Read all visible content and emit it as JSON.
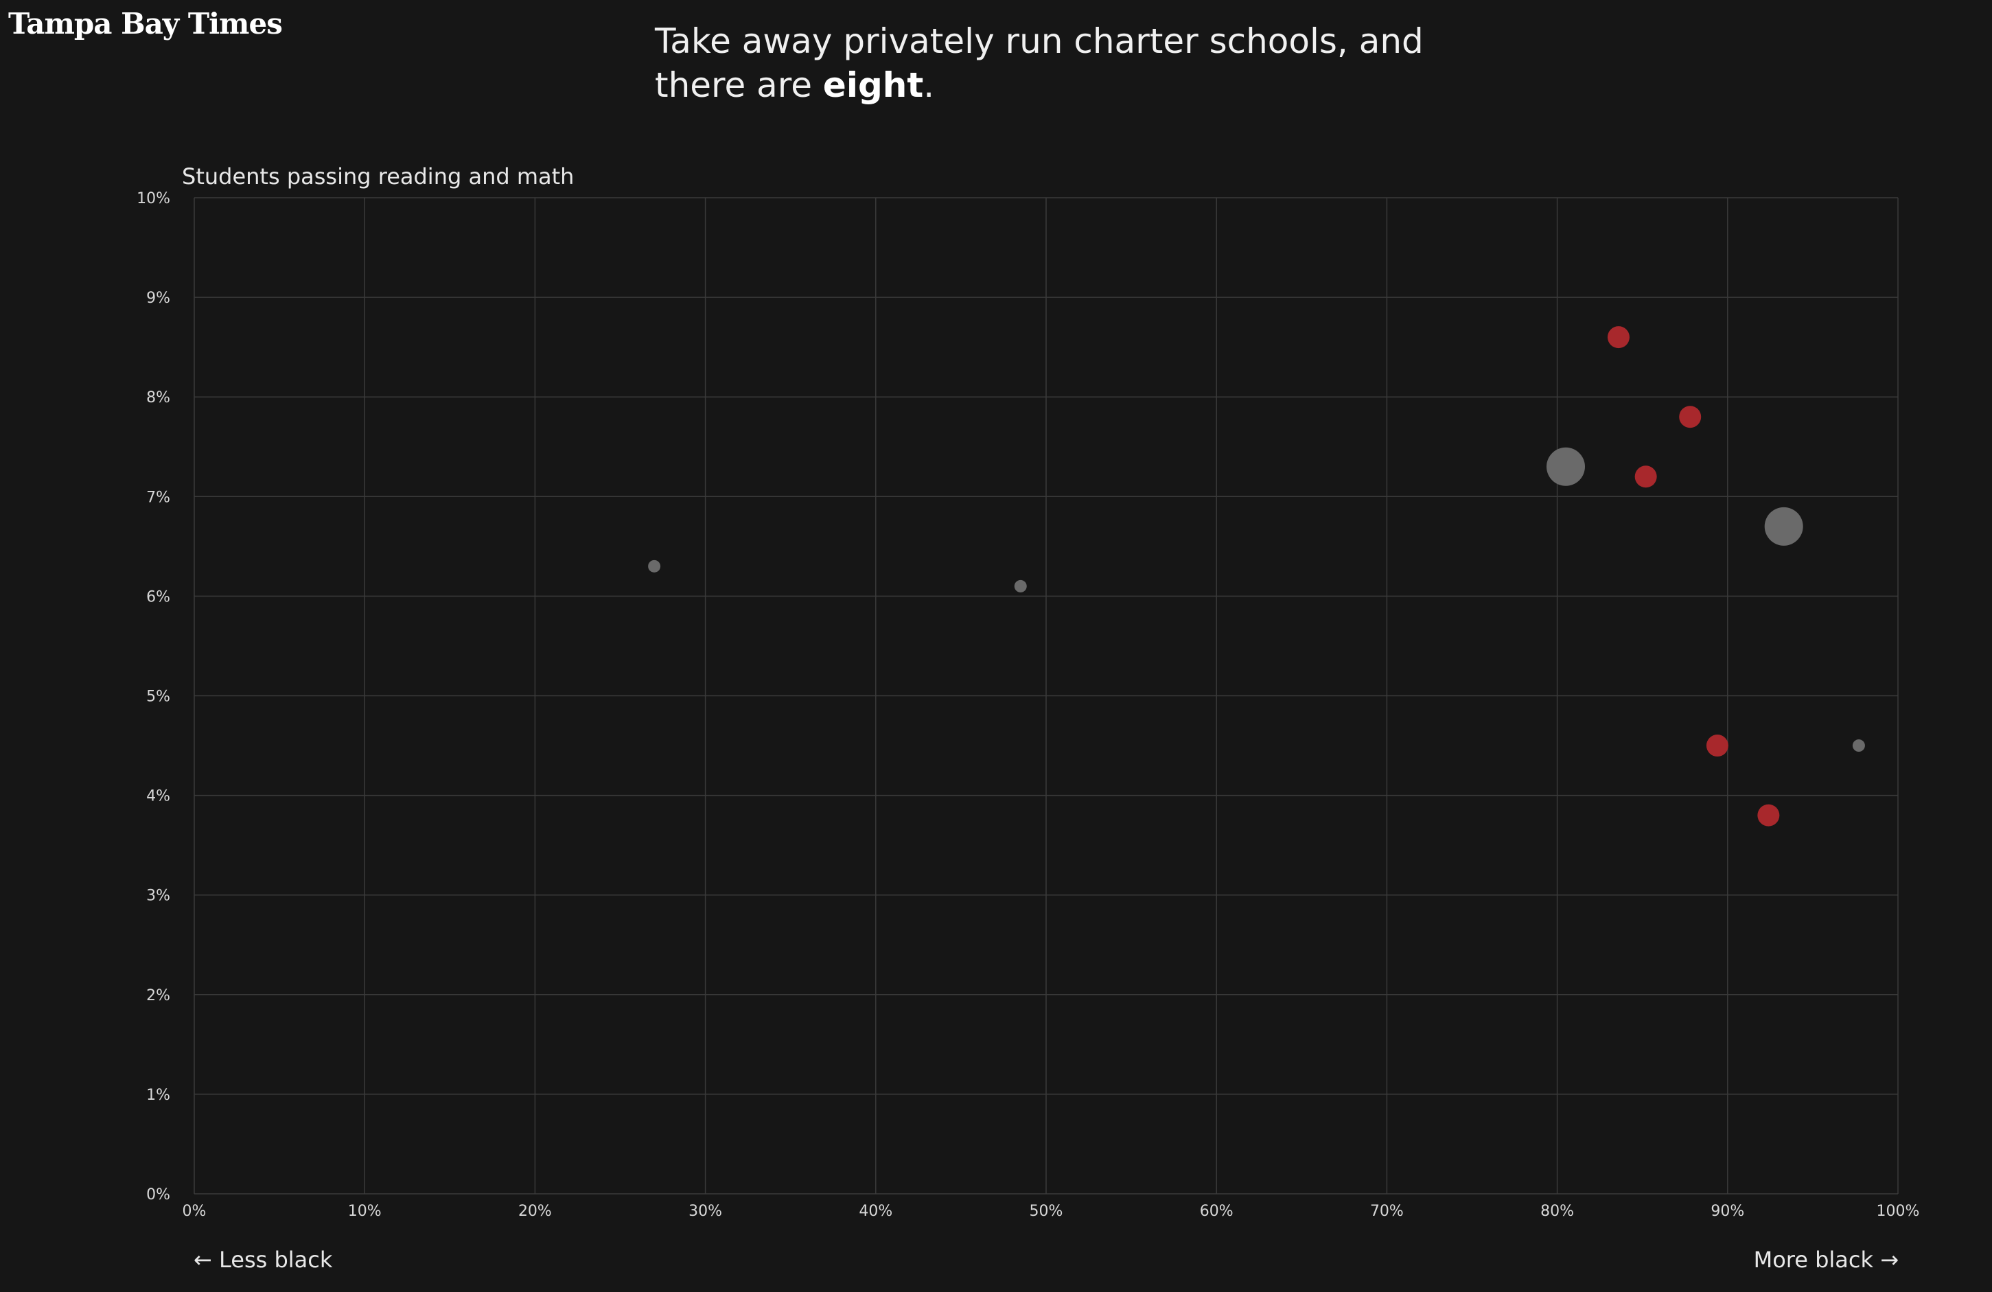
{
  "brand": {
    "logo_text": "Tampa Bay Times"
  },
  "headline": {
    "before": "Take away privately run charter schools, and there are ",
    "emphasis": "eight",
    "after": "."
  },
  "footer": {
    "left_label": "← Less black",
    "right_label": "More black →"
  },
  "colors": {
    "background": "#161616",
    "grid": "#3a3a3a",
    "highlight": "#a8282c",
    "other": "#6a6a6a"
  },
  "chart_data": {
    "type": "scatter",
    "title": "",
    "xlabel": "",
    "ylabel": "Students passing reading and math",
    "xlim": [
      0,
      100
    ],
    "ylim": [
      0,
      10
    ],
    "x_ticks": [
      "0%",
      "10%",
      "20%",
      "30%",
      "40%",
      "50%",
      "60%",
      "70%",
      "80%",
      "90%",
      "100%"
    ],
    "y_ticks": [
      "0%",
      "1%",
      "2%",
      "3%",
      "4%",
      "5%",
      "6%",
      "7%",
      "8%",
      "9%",
      "10%"
    ],
    "grid": true,
    "legend": "none",
    "points": [
      {
        "x": 27.0,
        "y": 6.3,
        "size": "small",
        "group": "other"
      },
      {
        "x": 48.5,
        "y": 6.1,
        "size": "small",
        "group": "other"
      },
      {
        "x": 80.5,
        "y": 7.3,
        "size": "large",
        "group": "other"
      },
      {
        "x": 83.6,
        "y": 8.6,
        "size": "medium",
        "group": "highlight"
      },
      {
        "x": 85.2,
        "y": 7.2,
        "size": "medium",
        "group": "highlight"
      },
      {
        "x": 87.8,
        "y": 7.8,
        "size": "medium",
        "group": "highlight"
      },
      {
        "x": 89.4,
        "y": 4.5,
        "size": "medium",
        "group": "highlight"
      },
      {
        "x": 92.4,
        "y": 3.8,
        "size": "medium",
        "group": "highlight"
      },
      {
        "x": 93.3,
        "y": 6.7,
        "size": "large",
        "group": "other"
      },
      {
        "x": 97.7,
        "y": 4.5,
        "size": "small",
        "group": "other"
      }
    ]
  }
}
